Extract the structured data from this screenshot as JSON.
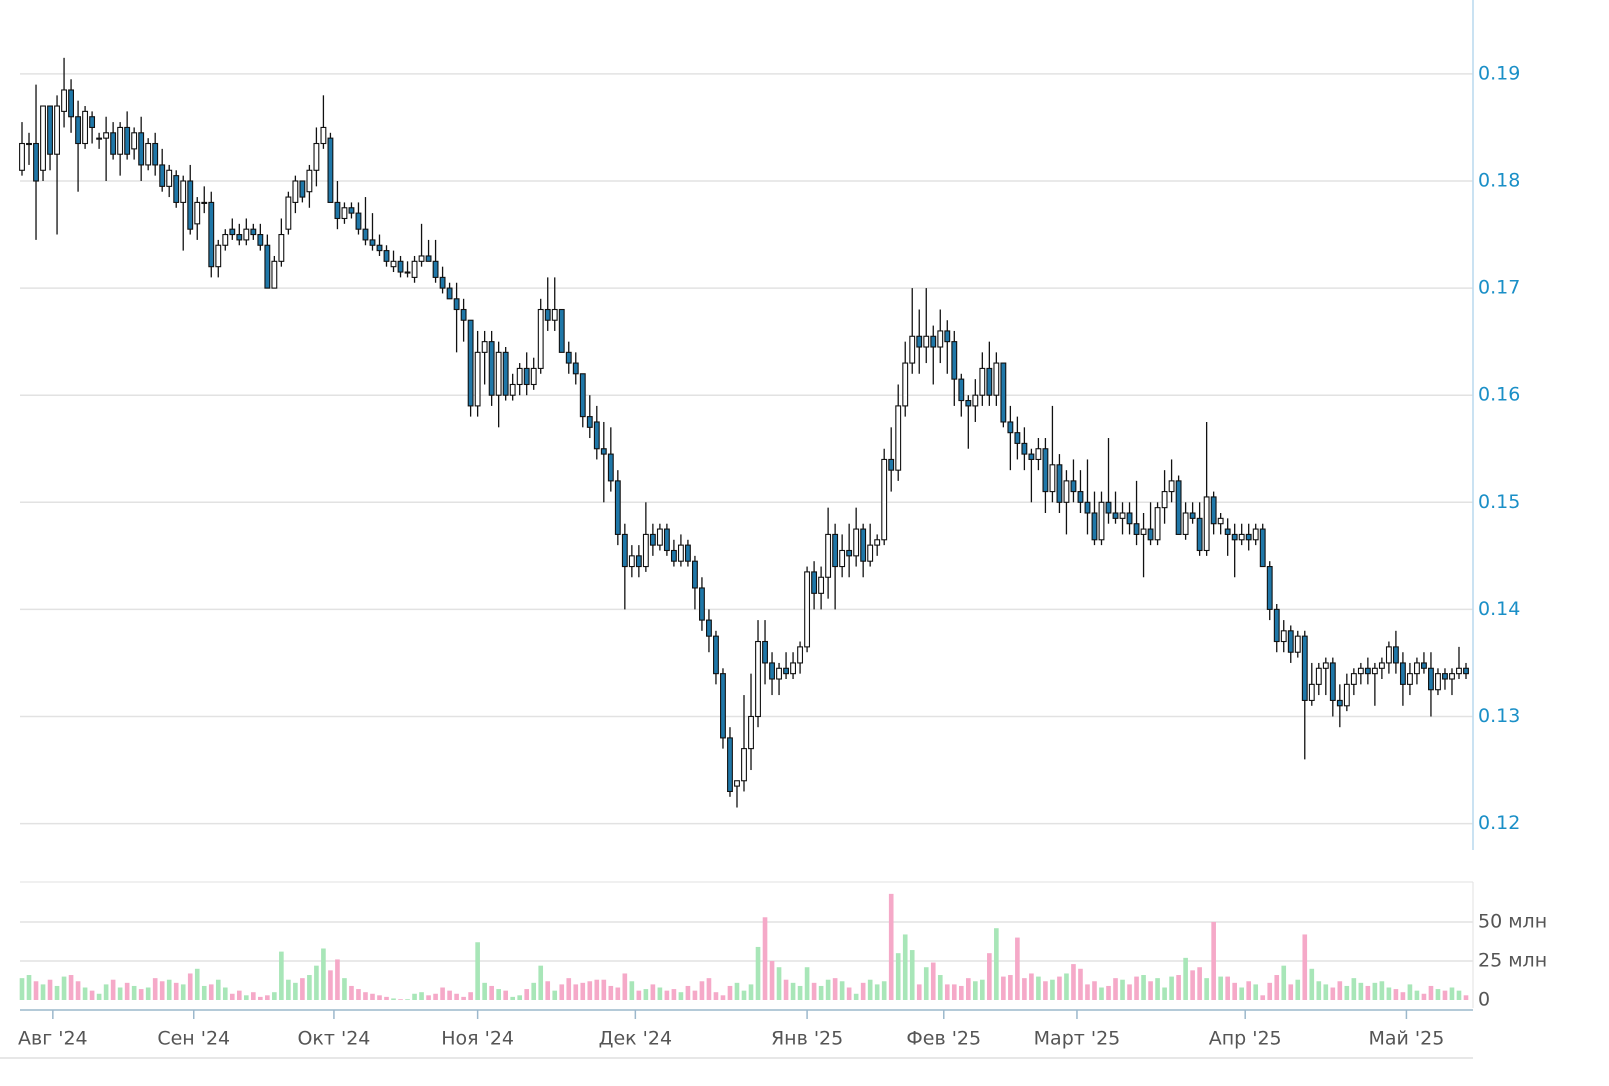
{
  "chart_data": {
    "type": "candlestick",
    "up_color": "#ffffff",
    "down_color": "#1f77a8",
    "wick_color": "#111111",
    "volume_up_color": "#a8e6b8",
    "volume_down_color": "#f5a9c8",
    "grid": true,
    "ylim": [
      0.1166,
      0.1969
    ],
    "yticks": [
      0.12,
      0.13,
      0.14,
      0.15,
      0.16,
      0.17,
      0.18,
      0.19
    ],
    "volume_ylim": [
      0,
      75.6
    ],
    "volume_yticks": [
      0,
      {
        "value": 25,
        "label": "25 млн"
      },
      {
        "value": 50,
        "label": "50 млн"
      }
    ],
    "xticks": [
      {
        "value": 4.4,
        "label": "Авг '24"
      },
      {
        "value": 24.5,
        "label": "Сен '24"
      },
      {
        "value": 44.5,
        "label": "Окт '24"
      },
      {
        "value": 65,
        "label": "Ноя '24"
      },
      {
        "value": 87.5,
        "label": "Дек '24"
      },
      {
        "value": 112,
        "label": "Янв '25"
      },
      {
        "value": 131.5,
        "label": "Фев '25"
      },
      {
        "value": 150.5,
        "label": "Март '25"
      },
      {
        "value": 174.5,
        "label": "Апр '25"
      },
      {
        "value": 197.5,
        "label": "Май '25"
      }
    ],
    "ohlc": [
      [
        0.181,
        0.1855,
        0.1805,
        0.1835
      ],
      [
        0.1835,
        0.1845,
        0.1815,
        0.1835
      ],
      [
        0.1835,
        0.189,
        0.1745,
        0.18
      ],
      [
        0.181,
        0.187,
        0.18,
        0.187
      ],
      [
        0.187,
        0.187,
        0.181,
        0.1825
      ],
      [
        0.1825,
        0.188,
        0.175,
        0.187
      ],
      [
        0.1865,
        0.1915,
        0.185,
        0.1885
      ],
      [
        0.1885,
        0.1895,
        0.1845,
        0.186
      ],
      [
        0.186,
        0.1875,
        0.179,
        0.1835
      ],
      [
        0.1835,
        0.187,
        0.183,
        0.1865
      ],
      [
        0.186,
        0.1865,
        0.1835,
        0.185
      ],
      [
        0.184,
        0.1845,
        0.183,
        0.184
      ],
      [
        0.184,
        0.186,
        0.18,
        0.1845
      ],
      [
        0.1845,
        0.1855,
        0.182,
        0.1825
      ],
      [
        0.1825,
        0.1855,
        0.1805,
        0.185
      ],
      [
        0.185,
        0.1865,
        0.182,
        0.1825
      ],
      [
        0.183,
        0.185,
        0.182,
        0.1845
      ],
      [
        0.1845,
        0.186,
        0.18,
        0.1815
      ],
      [
        0.1815,
        0.184,
        0.181,
        0.1835
      ],
      [
        0.1835,
        0.1845,
        0.1805,
        0.1815
      ],
      [
        0.1815,
        0.183,
        0.179,
        0.1795
      ],
      [
        0.1795,
        0.1815,
        0.1785,
        0.181
      ],
      [
        0.1805,
        0.181,
        0.1775,
        0.178
      ],
      [
        0.178,
        0.1805,
        0.1735,
        0.18
      ],
      [
        0.18,
        0.1815,
        0.175,
        0.1755
      ],
      [
        0.176,
        0.1785,
        0.1745,
        0.178
      ],
      [
        0.178,
        0.1795,
        0.177,
        0.178
      ],
      [
        0.178,
        0.179,
        0.171,
        0.172
      ],
      [
        0.172,
        0.1745,
        0.171,
        0.174
      ],
      [
        0.174,
        0.1755,
        0.1735,
        0.175
      ],
      [
        0.1755,
        0.1765,
        0.1745,
        0.175
      ],
      [
        0.175,
        0.176,
        0.174,
        0.1745
      ],
      [
        0.1745,
        0.1765,
        0.174,
        0.1755
      ],
      [
        0.1755,
        0.176,
        0.1745,
        0.175
      ],
      [
        0.175,
        0.176,
        0.1735,
        0.174
      ],
      [
        0.174,
        0.175,
        0.17,
        0.17
      ],
      [
        0.17,
        0.173,
        0.17,
        0.1725
      ],
      [
        0.1725,
        0.1765,
        0.172,
        0.175
      ],
      [
        0.1755,
        0.179,
        0.175,
        0.1785
      ],
      [
        0.178,
        0.1805,
        0.177,
        0.18
      ],
      [
        0.18,
        0.18,
        0.178,
        0.1785
      ],
      [
        0.179,
        0.1815,
        0.1775,
        0.181
      ],
      [
        0.181,
        0.185,
        0.1795,
        0.1835
      ],
      [
        0.1835,
        0.188,
        0.183,
        0.185
      ],
      [
        0.184,
        0.1845,
        0.178,
        0.178
      ],
      [
        0.178,
        0.18,
        0.1755,
        0.1765
      ],
      [
        0.1765,
        0.178,
        0.176,
        0.1775
      ],
      [
        0.1775,
        0.178,
        0.1765,
        0.177
      ],
      [
        0.177,
        0.178,
        0.175,
        0.1755
      ],
      [
        0.1755,
        0.1785,
        0.174,
        0.1745
      ],
      [
        0.1745,
        0.177,
        0.1735,
        0.174
      ],
      [
        0.174,
        0.175,
        0.173,
        0.1735
      ],
      [
        0.1735,
        0.174,
        0.172,
        0.1725
      ],
      [
        0.172,
        0.1735,
        0.1715,
        0.1725
      ],
      [
        0.1725,
        0.173,
        0.171,
        0.1715
      ],
      [
        0.1715,
        0.1725,
        0.171,
        0.1715
      ],
      [
        0.171,
        0.173,
        0.1705,
        0.1725
      ],
      [
        0.1725,
        0.176,
        0.172,
        0.173
      ],
      [
        0.173,
        0.1745,
        0.1725,
        0.1725
      ],
      [
        0.1725,
        0.1745,
        0.1705,
        0.171
      ],
      [
        0.171,
        0.172,
        0.1695,
        0.17
      ],
      [
        0.17,
        0.1705,
        0.169,
        0.169
      ],
      [
        0.169,
        0.1705,
        0.164,
        0.168
      ],
      [
        0.168,
        0.169,
        0.165,
        0.167
      ],
      [
        0.167,
        0.167,
        0.158,
        0.159
      ],
      [
        0.159,
        0.166,
        0.158,
        0.164
      ],
      [
        0.164,
        0.166,
        0.161,
        0.165
      ],
      [
        0.165,
        0.166,
        0.159,
        0.16
      ],
      [
        0.16,
        0.165,
        0.157,
        0.164
      ],
      [
        0.164,
        0.1645,
        0.1595,
        0.16
      ],
      [
        0.16,
        0.162,
        0.1595,
        0.161
      ],
      [
        0.161,
        0.163,
        0.16,
        0.1625
      ],
      [
        0.1625,
        0.164,
        0.16,
        0.161
      ],
      [
        0.161,
        0.1635,
        0.1605,
        0.1625
      ],
      [
        0.1625,
        0.169,
        0.162,
        0.168
      ],
      [
        0.168,
        0.171,
        0.166,
        0.167
      ],
      [
        0.167,
        0.171,
        0.166,
        0.168
      ],
      [
        0.168,
        0.168,
        0.164,
        0.164
      ],
      [
        0.164,
        0.165,
        0.162,
        0.163
      ],
      [
        0.163,
        0.164,
        0.161,
        0.162
      ],
      [
        0.162,
        0.162,
        0.157,
        0.158
      ],
      [
        0.158,
        0.16,
        0.156,
        0.157
      ],
      [
        0.1575,
        0.159,
        0.154,
        0.155
      ],
      [
        0.155,
        0.1575,
        0.15,
        0.1545
      ],
      [
        0.1545,
        0.157,
        0.151,
        0.152
      ],
      [
        0.152,
        0.153,
        0.146,
        0.147
      ],
      [
        0.147,
        0.148,
        0.14,
        0.144
      ],
      [
        0.144,
        0.146,
        0.143,
        0.145
      ],
      [
        0.145,
        0.146,
        0.143,
        0.144
      ],
      [
        0.144,
        0.15,
        0.1435,
        0.147
      ],
      [
        0.147,
        0.148,
        0.145,
        0.146
      ],
      [
        0.146,
        0.148,
        0.1455,
        0.1475
      ],
      [
        0.1475,
        0.148,
        0.145,
        0.1455
      ],
      [
        0.1455,
        0.1465,
        0.144,
        0.1445
      ],
      [
        0.1445,
        0.147,
        0.144,
        0.146
      ],
      [
        0.146,
        0.1465,
        0.144,
        0.1445
      ],
      [
        0.1445,
        0.145,
        0.14,
        0.142
      ],
      [
        0.142,
        0.143,
        0.138,
        0.139
      ],
      [
        0.139,
        0.14,
        0.136,
        0.1375
      ],
      [
        0.1375,
        0.138,
        0.133,
        0.134
      ],
      [
        0.134,
        0.1345,
        0.127,
        0.128
      ],
      [
        0.128,
        0.129,
        0.1225,
        0.123
      ],
      [
        0.1235,
        0.124,
        0.1215,
        0.124
      ],
      [
        0.124,
        0.132,
        0.123,
        0.127
      ],
      [
        0.127,
        0.134,
        0.125,
        0.13
      ],
      [
        0.13,
        0.139,
        0.129,
        0.137
      ],
      [
        0.137,
        0.139,
        0.133,
        0.135
      ],
      [
        0.135,
        0.136,
        0.132,
        0.1335
      ],
      [
        0.1335,
        0.135,
        0.132,
        0.1345
      ],
      [
        0.1345,
        0.136,
        0.1335,
        0.134
      ],
      [
        0.134,
        0.136,
        0.1335,
        0.135
      ],
      [
        0.135,
        0.137,
        0.134,
        0.1365
      ],
      [
        0.1365,
        0.144,
        0.136,
        0.1435
      ],
      [
        0.1435,
        0.1445,
        0.14,
        0.1415
      ],
      [
        0.1415,
        0.144,
        0.14,
        0.143
      ],
      [
        0.143,
        0.1495,
        0.141,
        0.147
      ],
      [
        0.147,
        0.148,
        0.14,
        0.144
      ],
      [
        0.144,
        0.147,
        0.143,
        0.1455
      ],
      [
        0.1455,
        0.148,
        0.143,
        0.145
      ],
      [
        0.145,
        0.1495,
        0.144,
        0.1475
      ],
      [
        0.1475,
        0.148,
        0.143,
        0.1445
      ],
      [
        0.1445,
        0.148,
        0.144,
        0.146
      ],
      [
        0.146,
        0.147,
        0.145,
        0.1465
      ],
      [
        0.1465,
        0.155,
        0.146,
        0.154
      ],
      [
        0.154,
        0.157,
        0.151,
        0.153
      ],
      [
        0.153,
        0.161,
        0.152,
        0.159
      ],
      [
        0.159,
        0.165,
        0.158,
        0.163
      ],
      [
        0.163,
        0.17,
        0.162,
        0.1655
      ],
      [
        0.1655,
        0.168,
        0.162,
        0.1645
      ],
      [
        0.1645,
        0.17,
        0.163,
        0.1655
      ],
      [
        0.1655,
        0.1665,
        0.161,
        0.1645
      ],
      [
        0.1645,
        0.168,
        0.163,
        0.166
      ],
      [
        0.166,
        0.167,
        0.162,
        0.165
      ],
      [
        0.165,
        0.166,
        0.159,
        0.1615
      ],
      [
        0.1615,
        0.162,
        0.158,
        0.1595
      ],
      [
        0.1595,
        0.16,
        0.155,
        0.159
      ],
      [
        0.159,
        0.1615,
        0.1575,
        0.16
      ],
      [
        0.16,
        0.164,
        0.159,
        0.1625
      ],
      [
        0.1625,
        0.165,
        0.159,
        0.16
      ],
      [
        0.16,
        0.164,
        0.159,
        0.163
      ],
      [
        0.163,
        0.163,
        0.157,
        0.1575
      ],
      [
        0.1575,
        0.159,
        0.153,
        0.1565
      ],
      [
        0.1565,
        0.158,
        0.154,
        0.1555
      ],
      [
        0.1555,
        0.157,
        0.153,
        0.1545
      ],
      [
        0.1545,
        0.155,
        0.15,
        0.154
      ],
      [
        0.154,
        0.156,
        0.153,
        0.155
      ],
      [
        0.155,
        0.156,
        0.149,
        0.151
      ],
      [
        0.151,
        0.159,
        0.15,
        0.1535
      ],
      [
        0.1535,
        0.1545,
        0.149,
        0.15
      ],
      [
        0.15,
        0.153,
        0.147,
        0.152
      ],
      [
        0.152,
        0.154,
        0.15,
        0.151
      ],
      [
        0.151,
        0.153,
        0.149,
        0.15
      ],
      [
        0.15,
        0.154,
        0.147,
        0.149
      ],
      [
        0.149,
        0.151,
        0.146,
        0.1465
      ],
      [
        0.1465,
        0.151,
        0.146,
        0.15
      ],
      [
        0.15,
        0.156,
        0.148,
        0.149
      ],
      [
        0.149,
        0.151,
        0.148,
        0.1485
      ],
      [
        0.1485,
        0.15,
        0.147,
        0.149
      ],
      [
        0.149,
        0.15,
        0.147,
        0.148
      ],
      [
        0.148,
        0.152,
        0.146,
        0.147
      ],
      [
        0.147,
        0.149,
        0.143,
        0.1475
      ],
      [
        0.1475,
        0.15,
        0.146,
        0.1465
      ],
      [
        0.1465,
        0.15,
        0.146,
        0.1495
      ],
      [
        0.1495,
        0.153,
        0.148,
        0.151
      ],
      [
        0.151,
        0.154,
        0.15,
        0.152
      ],
      [
        0.152,
        0.1525,
        0.147,
        0.147
      ],
      [
        0.147,
        0.15,
        0.1465,
        0.149
      ],
      [
        0.149,
        0.15,
        0.148,
        0.1485
      ],
      [
        0.1485,
        0.15,
        0.145,
        0.1455
      ],
      [
        0.1455,
        0.1575,
        0.145,
        0.1505
      ],
      [
        0.1505,
        0.151,
        0.147,
        0.148
      ],
      [
        0.148,
        0.149,
        0.147,
        0.1485
      ],
      [
        0.1475,
        0.1485,
        0.145,
        0.147
      ],
      [
        0.147,
        0.148,
        0.143,
        0.1465
      ],
      [
        0.1465,
        0.148,
        0.146,
        0.147
      ],
      [
        0.147,
        0.148,
        0.1455,
        0.1465
      ],
      [
        0.1465,
        0.148,
        0.146,
        0.1475
      ],
      [
        0.1475,
        0.148,
        0.144,
        0.144
      ],
      [
        0.144,
        0.1445,
        0.139,
        0.14
      ],
      [
        0.14,
        0.1405,
        0.136,
        0.137
      ],
      [
        0.137,
        0.139,
        0.136,
        0.138
      ],
      [
        0.138,
        0.1385,
        0.135,
        0.136
      ],
      [
        0.136,
        0.138,
        0.1355,
        0.1375
      ],
      [
        0.1375,
        0.138,
        0.126,
        0.1315
      ],
      [
        0.1315,
        0.135,
        0.131,
        0.133
      ],
      [
        0.133,
        0.135,
        0.132,
        0.1345
      ],
      [
        0.1345,
        0.1355,
        0.132,
        0.135
      ],
      [
        0.135,
        0.1355,
        0.13,
        0.1315
      ],
      [
        0.1315,
        0.133,
        0.129,
        0.131
      ],
      [
        0.131,
        0.134,
        0.1305,
        0.133
      ],
      [
        0.133,
        0.1345,
        0.132,
        0.134
      ],
      [
        0.134,
        0.135,
        0.133,
        0.1345
      ],
      [
        0.1345,
        0.1355,
        0.133,
        0.134
      ],
      [
        0.134,
        0.135,
        0.131,
        0.1345
      ],
      [
        0.1345,
        0.1355,
        0.1335,
        0.135
      ],
      [
        0.135,
        0.137,
        0.134,
        0.1365
      ],
      [
        0.1365,
        0.138,
        0.134,
        0.135
      ],
      [
        0.135,
        0.136,
        0.131,
        0.133
      ],
      [
        0.133,
        0.135,
        0.132,
        0.134
      ],
      [
        0.134,
        0.1355,
        0.133,
        0.135
      ],
      [
        0.135,
        0.136,
        0.134,
        0.1345
      ],
      [
        0.1345,
        0.136,
        0.13,
        0.1325
      ],
      [
        0.1325,
        0.1345,
        0.132,
        0.134
      ],
      [
        0.134,
        0.1345,
        0.1325,
        0.1335
      ],
      [
        0.1335,
        0.1345,
        0.132,
        0.134
      ],
      [
        0.134,
        0.1365,
        0.1335,
        0.1345
      ],
      [
        0.1345,
        0.135,
        0.1335,
        0.134
      ]
    ],
    "volume": [
      14,
      16,
      12,
      10,
      13,
      9,
      15,
      16,
      12,
      8,
      6,
      4,
      10,
      13,
      8,
      11,
      9,
      7,
      8,
      14,
      12,
      13,
      11,
      10,
      17,
      20,
      9,
      10,
      13,
      8,
      4,
      6,
      3,
      5,
      2,
      3,
      5,
      31,
      13,
      11,
      14,
      16,
      22,
      33,
      19,
      26,
      14,
      9,
      7,
      5,
      4,
      3,
      2,
      1,
      0.5,
      0.5,
      4,
      5,
      3,
      4,
      8,
      6,
      4,
      2,
      5,
      37,
      11,
      9,
      7,
      6,
      2,
      3,
      7,
      11,
      22,
      12,
      6,
      10,
      14,
      10,
      11,
      12,
      13,
      13,
      9,
      8,
      17,
      12,
      6,
      7,
      10,
      8,
      6,
      7,
      5,
      9,
      6,
      12,
      14,
      5,
      3,
      9,
      11,
      6,
      10,
      34,
      53,
      25,
      21,
      13,
      11,
      9,
      21,
      11,
      9,
      13,
      14,
      12,
      8,
      4,
      11,
      13,
      10,
      12,
      68,
      30,
      42,
      32,
      10,
      21,
      24,
      16,
      10,
      10,
      9,
      14,
      12,
      13,
      30,
      46,
      15,
      16,
      40,
      14,
      17,
      15,
      12,
      13,
      15,
      17,
      23,
      20,
      10,
      12,
      8,
      9,
      14,
      13,
      10,
      15,
      16,
      12,
      14,
      8,
      15,
      16,
      27,
      19,
      21,
      14,
      50,
      15,
      15,
      11,
      8,
      12,
      10,
      3,
      11,
      16,
      22,
      10,
      13,
      42,
      20,
      12,
      10,
      8,
      12,
      9,
      14,
      11,
      9,
      11,
      12,
      8,
      7,
      5,
      10,
      6,
      4,
      9,
      7,
      6,
      8,
      6,
      3
    ]
  }
}
